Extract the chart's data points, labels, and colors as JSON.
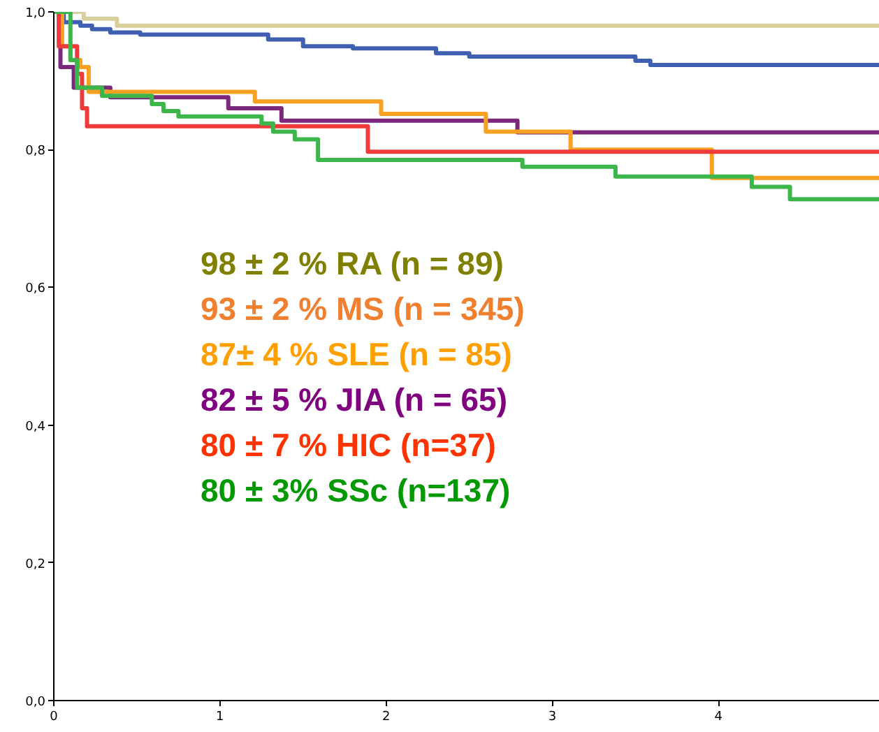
{
  "chart_data": {
    "type": "step",
    "xlim": [
      0,
      4.97
    ],
    "ylim": [
      0,
      1.0
    ],
    "xticks": [
      0,
      1,
      2,
      3,
      4
    ],
    "yticks": [
      {
        "value": 0,
        "label": "0,0"
      },
      {
        "value": 0.2,
        "label": "0,2"
      },
      {
        "value": 0.4,
        "label": "0,4"
      },
      {
        "value": 0.6,
        "label": "0,6"
      },
      {
        "value": 0.8,
        "label": "0,8"
      },
      {
        "value": 1.0,
        "label": "1,0"
      }
    ],
    "grid": false,
    "marker": "none",
    "line_style": "solid",
    "series": [
      {
        "color": "#d8d09c",
        "x": [
          0,
          0.18,
          0.38,
          4.97
        ],
        "values": [
          1.0,
          0.99,
          0.98,
          0.98
        ]
      },
      {
        "color": "#3f5fb0",
        "x": [
          0,
          0.06,
          0.16,
          0.23,
          0.34,
          0.52,
          1.29,
          1.5,
          1.8,
          2.3,
          2.5,
          3.5,
          3.59,
          4.97
        ],
        "values": [
          1.0,
          0.985,
          0.98,
          0.975,
          0.97,
          0.967,
          0.96,
          0.95,
          0.947,
          0.94,
          0.935,
          0.929,
          0.923,
          0.923
        ]
      },
      {
        "color": "#7b2a7b",
        "x": [
          0,
          0.04,
          0.12,
          0.34,
          1.05,
          1.37,
          2.79,
          4.97
        ],
        "values": [
          1.0,
          0.92,
          0.89,
          0.876,
          0.86,
          0.842,
          0.825,
          0.825
        ]
      },
      {
        "color": "#f7a021",
        "x": [
          0,
          0.05,
          0.1,
          0.16,
          0.21,
          1.21,
          1.97,
          2.6,
          3.11,
          3.96,
          4.97
        ],
        "values": [
          1.0,
          0.95,
          0.93,
          0.92,
          0.884,
          0.87,
          0.852,
          0.826,
          0.8,
          0.759,
          0.759
        ]
      },
      {
        "color": "#ee3a3a",
        "x": [
          0,
          0.03,
          0.14,
          0.17,
          0.2,
          1.89,
          4.97
        ],
        "values": [
          1.0,
          0.95,
          0.91,
          0.86,
          0.834,
          0.797,
          0.797
        ]
      },
      {
        "color": "#3cb54a",
        "x": [
          0,
          0.1,
          0.14,
          0.29,
          0.59,
          0.66,
          0.75,
          1.25,
          1.32,
          1.45,
          1.59,
          2.82,
          3.38,
          4.2,
          4.43,
          4.97
        ],
        "values": [
          1.0,
          0.93,
          0.89,
          0.878,
          0.866,
          0.856,
          0.848,
          0.838,
          0.826,
          0.815,
          0.785,
          0.775,
          0.761,
          0.746,
          0.728,
          0.728
        ]
      }
    ],
    "annotations": [
      "98 ± 2  % RA    (n = 89)",
      "93 ± 2  % MS   (n = 345)",
      "87± 4  % SLE   (n = 85)",
      "82 ± 5  % JIA    (n = 65)",
      "80 ± 7 % HIC (n=37)",
      "80 ± 3% SSc  (n=137)"
    ]
  }
}
